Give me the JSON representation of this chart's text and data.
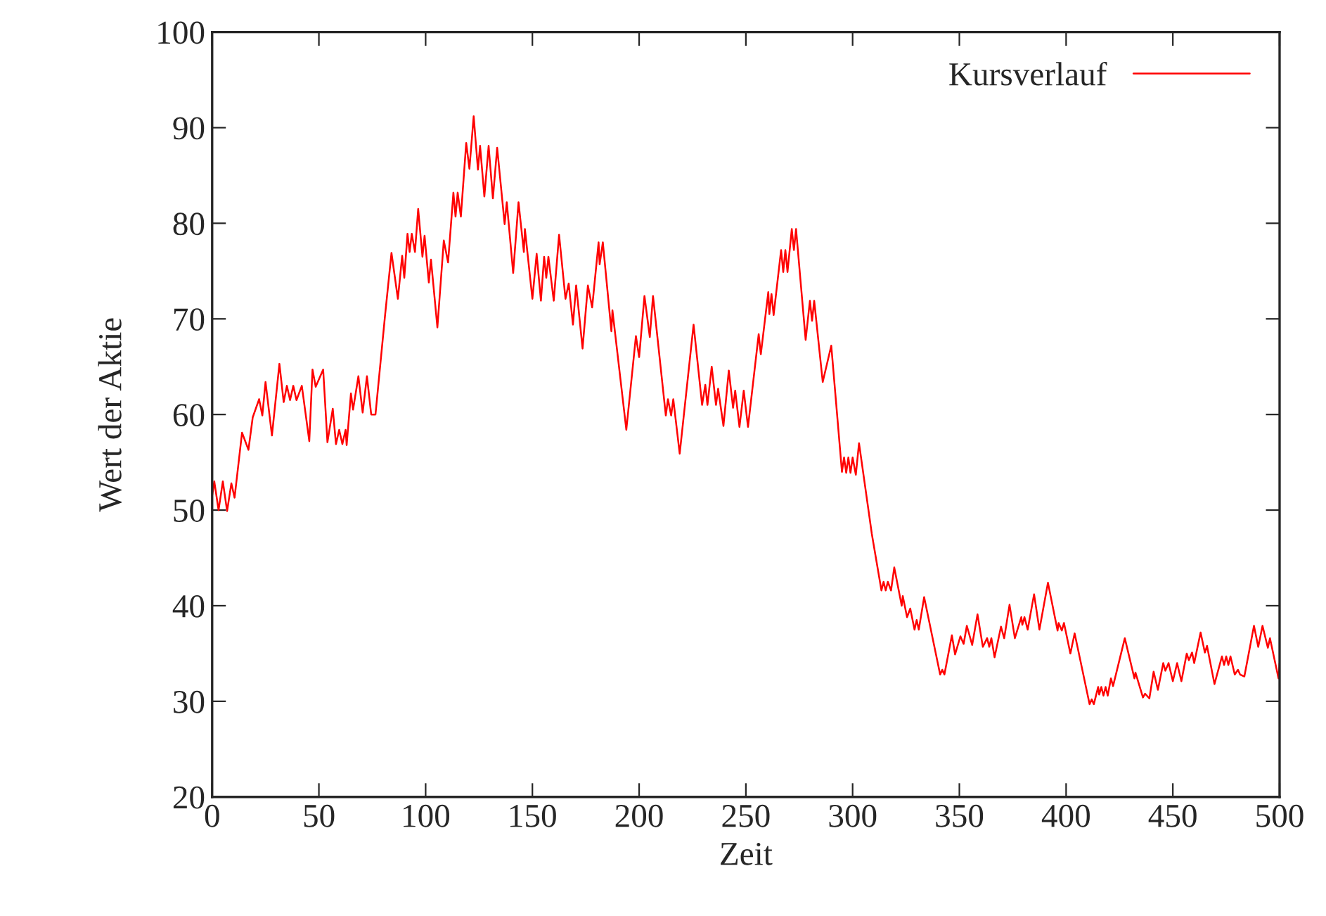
{
  "chart_data": {
    "type": "line",
    "xlabel": "Zeit",
    "ylabel": "Wert der Aktie",
    "xlim": [
      0,
      500
    ],
    "ylim": [
      20,
      100
    ],
    "xticks": [
      0,
      50,
      100,
      150,
      200,
      250,
      300,
      350,
      400,
      450,
      500
    ],
    "yticks": [
      20,
      30,
      40,
      50,
      60,
      70,
      80,
      90,
      100
    ],
    "grid": false,
    "legend": "top right",
    "marker": "none",
    "line_style": "solid",
    "series": [
      {
        "name": "Kursverlauf",
        "color": "#ff0000",
        "x": [
          0,
          1,
          3,
          5,
          7,
          9,
          10.5,
          14,
          17,
          19,
          22,
          23.5,
          25,
          28,
          31.5,
          33.5,
          35,
          36.5,
          38,
          39.5,
          42,
          45.5,
          47,
          48.5,
          52,
          54,
          56.5,
          58,
          59.5,
          61,
          62.5,
          63,
          65,
          66,
          68.5,
          70.5,
          72.5,
          74.5,
          76.5,
          81,
          84,
          87,
          89,
          90,
          91.5,
          92.5,
          93.5,
          95,
          96.5,
          98.5,
          99.5,
          101.5,
          102.5,
          105.5,
          108.5,
          110.5,
          113,
          114,
          115,
          116.5,
          119,
          120.5,
          122.5,
          124.5,
          125.5,
          127.5,
          129.5,
          131.5,
          133.5,
          137,
          138,
          141,
          143.5,
          146,
          146.5,
          150,
          152,
          154,
          155.5,
          156.5,
          157.5,
          160,
          162.5,
          165.5,
          167,
          169,
          170.5,
          173.5,
          176,
          178,
          181,
          181.5,
          183,
          187,
          187.5,
          194,
          198.5,
          200,
          202.5,
          205,
          206.5,
          212.5,
          213.5,
          215,
          216,
          219,
          225.5,
          229.5,
          231,
          232,
          234,
          236,
          237,
          239.5,
          242,
          244,
          245,
          247,
          249,
          251,
          256,
          257,
          260.5,
          261,
          262,
          263,
          266.5,
          267.5,
          268.5,
          269.5,
          271.5,
          272.5,
          273.5,
          278,
          280,
          281,
          282,
          286,
          290,
          295,
          296,
          297,
          298,
          299,
          300,
          301.5,
          303,
          309,
          313.5,
          314.5,
          315.5,
          316.5,
          318,
          319.5,
          323,
          323.5,
          325.5,
          327,
          329,
          330,
          331,
          333.5,
          341,
          342,
          343,
          346.5,
          348,
          350.5,
          352,
          353.5,
          356,
          358.5,
          361,
          363,
          364,
          365,
          366.5,
          369.5,
          371,
          373.5,
          376,
          379,
          379.5,
          380.5,
          382,
          385,
          387.5,
          391.5,
          396,
          396.5,
          398,
          399,
          402,
          404,
          411,
          412,
          413,
          415,
          415.5,
          416.5,
          417.5,
          418.5,
          419.5,
          421,
          422,
          427.5,
          432,
          432.5,
          436,
          437,
          439,
          441,
          443,
          445.5,
          446.5,
          448,
          450,
          452,
          454,
          456.5,
          457.5,
          459,
          460,
          463,
          465,
          466,
          469.5,
          473,
          474,
          475,
          476,
          477,
          479,
          480.5,
          481.5,
          483.5,
          488,
          490,
          492,
          494.5,
          495.5,
          499.5,
          500
        ],
        "values": [
          51.5,
          53,
          50,
          53,
          49.9,
          52.8,
          51.3,
          58.1,
          56.3,
          59.7,
          61.6,
          59.9,
          63.4,
          57.8,
          65.3,
          61.3,
          63,
          61.5,
          63,
          61.5,
          63,
          57.2,
          64.7,
          62.9,
          64.7,
          57.1,
          60.6,
          56.9,
          58.4,
          56.9,
          58.4,
          56.8,
          62.2,
          60.5,
          64,
          60.2,
          64,
          60,
          60,
          70.4,
          76.9,
          72.1,
          76.6,
          74.3,
          78.9,
          77,
          78.9,
          77,
          81.5,
          76.5,
          78.7,
          73.8,
          76.2,
          69.1,
          78.2,
          75.9,
          83.2,
          80.7,
          83.2,
          80.7,
          88.4,
          85.7,
          91.2,
          85.6,
          88.1,
          82.8,
          88.1,
          82.6,
          87.9,
          79.9,
          82.2,
          74.8,
          82.2,
          77,
          79.4,
          72.1,
          76.8,
          71.9,
          76.5,
          74.3,
          76.5,
          71.9,
          78.8,
          72.1,
          73.7,
          69.4,
          73.5,
          66.9,
          73.5,
          71.2,
          78,
          75.7,
          78,
          68.7,
          70.9,
          58.4,
          68.2,
          66,
          72.4,
          68.1,
          72.4,
          59.9,
          61.6,
          59.9,
          61.6,
          55.9,
          69.4,
          61,
          63.1,
          61,
          65,
          61,
          62.7,
          58.8,
          64.6,
          60.7,
          62.5,
          58.7,
          62.5,
          58.7,
          68.4,
          66.3,
          72.8,
          70.5,
          72.6,
          70.4,
          77.2,
          74.9,
          77.2,
          74.9,
          79.4,
          77.2,
          79.4,
          67.8,
          71.9,
          69.8,
          71.9,
          63.4,
          67.2,
          54,
          55.5,
          53.9,
          55.5,
          53.9,
          55.5,
          53.7,
          57,
          47.5,
          41.6,
          42.5,
          41.6,
          42.5,
          41.6,
          44,
          40,
          41,
          38.8,
          39.7,
          37.5,
          38.5,
          37.5,
          40.9,
          32.8,
          33.3,
          32.8,
          36.9,
          34.9,
          36.8,
          36,
          37.9,
          35.9,
          39.1,
          35.7,
          36.6,
          35.7,
          36.6,
          34.6,
          37.8,
          36.6,
          40.1,
          36.6,
          38.8,
          38,
          38.8,
          37.5,
          41.2,
          37.5,
          42.4,
          37.4,
          38.2,
          37.4,
          38.2,
          35,
          37.1,
          29.7,
          30.2,
          29.7,
          31.5,
          30.7,
          31.5,
          30.6,
          31.5,
          30.6,
          32.4,
          31.6,
          36.6,
          32.4,
          33,
          30.4,
          30.8,
          30.3,
          33.1,
          31.2,
          34,
          33.2,
          34,
          32.1,
          34,
          32.1,
          35,
          34.3,
          35.1,
          34,
          37.2,
          35.1,
          35.8,
          31.8,
          34.7,
          33.8,
          34.7,
          33.8,
          34.7,
          32.8,
          33.3,
          32.8,
          32.6,
          37.9,
          35.7,
          37.9,
          35.6,
          36.6,
          32.4,
          34
        ]
      }
    ]
  }
}
